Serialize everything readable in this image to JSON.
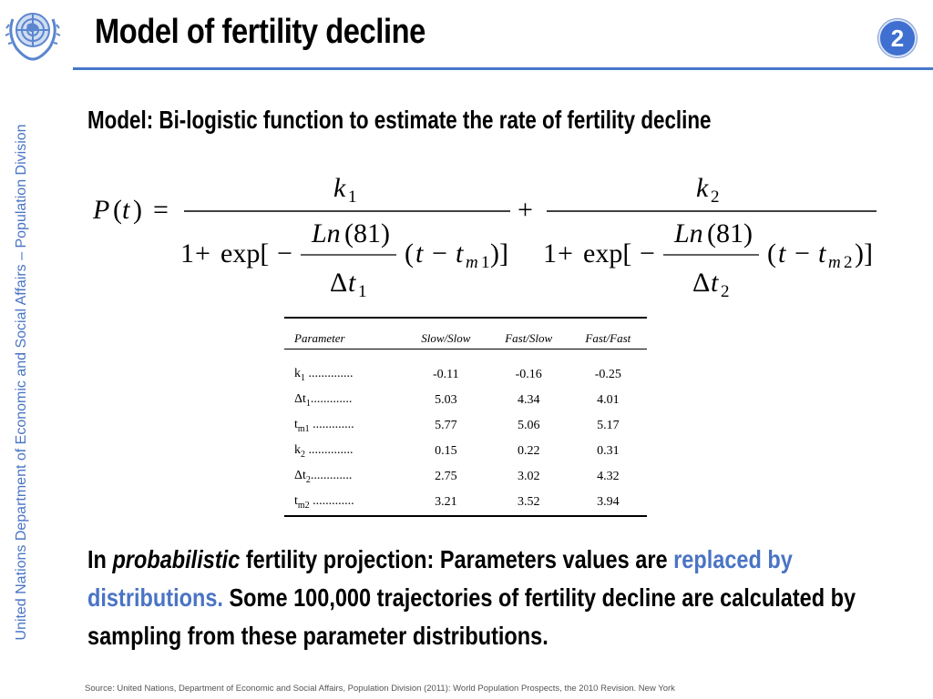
{
  "header": {
    "title": "Model of fertility decline",
    "slide_number": "2",
    "logo": "un-emblem-icon",
    "rule_color": "#4677c9",
    "badge_color": "#3f70d1"
  },
  "side_label": "United Nations Department of Economic and Social Affairs – Population Division",
  "subtitle": "Model: Bi-logistic function to estimate the rate of fertility decline",
  "formula": {
    "lhs": "P(t) =",
    "term1": {
      "numerator": "k1",
      "constant": "Ln(81)",
      "denominator": "Δt1",
      "shift": "tm1"
    },
    "term2": {
      "numerator": "k2",
      "constant": "Ln(81)",
      "denominator": "Δt2",
      "shift": "tm2"
    },
    "prefix": "1 + exp[−",
    "plus": "+"
  },
  "table": {
    "headers": [
      "Parameter",
      "Slow/Slow",
      "Fast/Slow",
      "Fast/Fast"
    ],
    "rows": [
      {
        "name": "k",
        "sub": "1",
        "leader": " ..............",
        "values": [
          "-0.11",
          "-0.16",
          "-0.25"
        ]
      },
      {
        "name": "Δt",
        "sub": "1",
        "leader": ".............",
        "values": [
          "5.03",
          "4.34",
          "4.01"
        ]
      },
      {
        "name": "t",
        "sub": "m1",
        "leader": " .............",
        "values": [
          "5.77",
          "5.06",
          "5.17"
        ]
      },
      {
        "name": "k",
        "sub": "2",
        "leader": " ..............",
        "values": [
          "0.15",
          "0.22",
          "0.31"
        ]
      },
      {
        "name": "Δt",
        "sub": "2",
        "leader": ".............",
        "values": [
          "2.75",
          "3.02",
          "4.32"
        ]
      },
      {
        "name": "t",
        "sub": "m2",
        "leader": " .............",
        "values": [
          "3.21",
          "3.52",
          "3.94"
        ]
      }
    ]
  },
  "bottom": {
    "part1": "In ",
    "part2": "probabilistic",
    "part3": " fertility projection: Parameters values are ",
    "highlight": "replaced by distributions.",
    "part4": " Some 100,000 trajectories of fertility decline are calculated by sampling from these parameter distributions.",
    "highlight_color": "#4a74c4"
  },
  "source": "Source: United Nations, Department of Economic and Social Affairs, Population Division (2011): World Population Prospects, the 2010 Revision. New York"
}
